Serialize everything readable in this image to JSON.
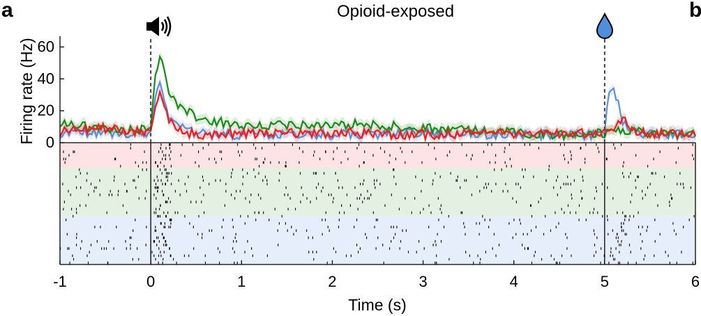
{
  "panel_labels": [
    "a",
    "b"
  ],
  "colors": {
    "blue": "#5b8fe0",
    "green": "#1a8a1a",
    "red": "#e82020",
    "band_red": "#fde3e3",
    "band_green": "#e4f0e2",
    "band_blue": "#e6edfb",
    "drop_icon": "#4f8fdc"
  },
  "icons": {
    "stimulus": "speaker-icon",
    "reward": "water-drop-icon"
  },
  "chart_data": {
    "type": "line",
    "title": "Opioid-exposed",
    "xlabel": "Time (s)",
    "ylabel": "Firing rate (Hz)",
    "xlim": [
      -1,
      6
    ],
    "ylim": [
      0,
      65
    ],
    "xticks": [
      -1,
      0,
      1,
      2,
      3,
      4,
      5,
      6
    ],
    "yticks": [
      0,
      20,
      40,
      60
    ],
    "event_times": [
      0,
      5
    ],
    "series": [
      {
        "color": "blue",
        "x": [
          -1,
          -0.5,
          0,
          0.05,
          0.1,
          0.2,
          0.3,
          0.5,
          1,
          2,
          3,
          4,
          4.9,
          5.0,
          5.05,
          5.1,
          5.2,
          5.35,
          5.6,
          6
        ],
        "values": [
          6,
          6,
          6,
          30,
          40,
          16,
          10,
          6,
          5,
          5,
          6,
          5,
          5,
          8,
          30,
          34,
          14,
          6,
          5,
          5
        ]
      },
      {
        "color": "green",
        "x": [
          -1,
          -0.5,
          0,
          0.05,
          0.1,
          0.2,
          0.3,
          0.5,
          1,
          1.5,
          2,
          2.5,
          3,
          3.5,
          4,
          4.5,
          5,
          5.2,
          5.5,
          6
        ],
        "values": [
          13,
          8,
          8,
          40,
          55,
          32,
          24,
          16,
          10,
          11,
          12,
          11,
          9,
          8,
          6,
          5,
          6,
          8,
          6,
          5
        ]
      },
      {
        "color": "red",
        "x": [
          -1,
          -0.5,
          0,
          0.05,
          0.1,
          0.2,
          0.3,
          0.5,
          1,
          2,
          3,
          4,
          5,
          5.1,
          5.2,
          5.3,
          5.5,
          6
        ],
        "values": [
          7,
          9,
          6,
          22,
          32,
          14,
          8,
          5,
          6,
          6,
          5,
          6,
          6,
          6,
          18,
          8,
          6,
          6
        ]
      }
    ],
    "raster": {
      "bands": [
        "red",
        "green",
        "blue"
      ]
    }
  }
}
